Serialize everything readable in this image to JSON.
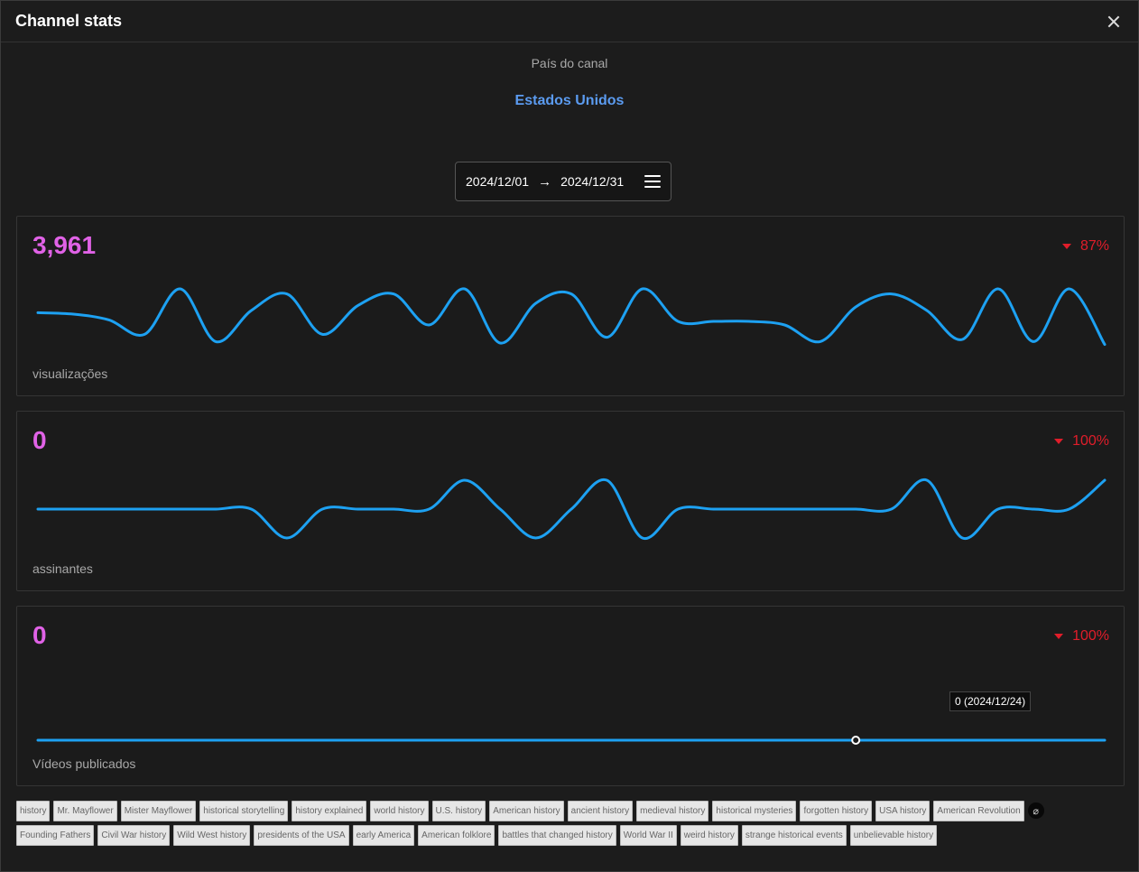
{
  "modal": {
    "title": "Channel stats"
  },
  "country": {
    "label": "País do canal",
    "value": "Estados Unidos"
  },
  "date_range": {
    "start": "2024/12/01",
    "end": "2024/12/31"
  },
  "cards": [
    {
      "value": "3,961",
      "change": "87%",
      "direction": "down",
      "label": "visualizações",
      "series": [
        0.52,
        0.5,
        0.42,
        0.22,
        0.85,
        0.12,
        0.55,
        0.78,
        0.22,
        0.62,
        0.78,
        0.35,
        0.85,
        0.1,
        0.65,
        0.78,
        0.18,
        0.85,
        0.4,
        0.4,
        0.4,
        0.35,
        0.12,
        0.6,
        0.78,
        0.55,
        0.15,
        0.85,
        0.12,
        0.85,
        0.08
      ]
    },
    {
      "value": "0",
      "change": "100%",
      "direction": "down",
      "label": "assinantes",
      "series": [
        0.5,
        0.5,
        0.5,
        0.5,
        0.5,
        0.5,
        0.5,
        0.1,
        0.5,
        0.5,
        0.5,
        0.5,
        0.9,
        0.5,
        0.1,
        0.5,
        0.9,
        0.1,
        0.5,
        0.5,
        0.5,
        0.5,
        0.5,
        0.5,
        0.5,
        0.9,
        0.1,
        0.5,
        0.5,
        0.5,
        0.9
      ]
    },
    {
      "value": "0",
      "change": "100%",
      "direction": "down",
      "label": "Vídeos publicados",
      "series": [
        0,
        0,
        0,
        0,
        0,
        0,
        0,
        0,
        0,
        0,
        0,
        0,
        0,
        0,
        0,
        0,
        0,
        0,
        0,
        0,
        0,
        0,
        0,
        0,
        0,
        0,
        0,
        0,
        0,
        0,
        0
      ]
    }
  ],
  "tooltip": {
    "text": "0 (2024/12/24)"
  },
  "colors": {
    "accent": "#5b9bf0",
    "value": "#e062e6",
    "negative": "#e11d2a",
    "line": "#1da1f2"
  },
  "tags": [
    "history",
    "Mr. Mayflower",
    "Mister Mayflower",
    "historical storytelling",
    "history explained",
    "world history",
    "U.S. history",
    "American history",
    "ancient history",
    "medieval history",
    "historical mysteries",
    "forgotten history",
    "USA history",
    "American Revolution",
    "Founding Fathers",
    "Civil War history",
    "Wild West history",
    "presidents of the USA",
    "early America",
    "American folklore",
    "battles that changed history",
    "World War II",
    "weird history",
    "strange historical events",
    "unbelievable history"
  ]
}
